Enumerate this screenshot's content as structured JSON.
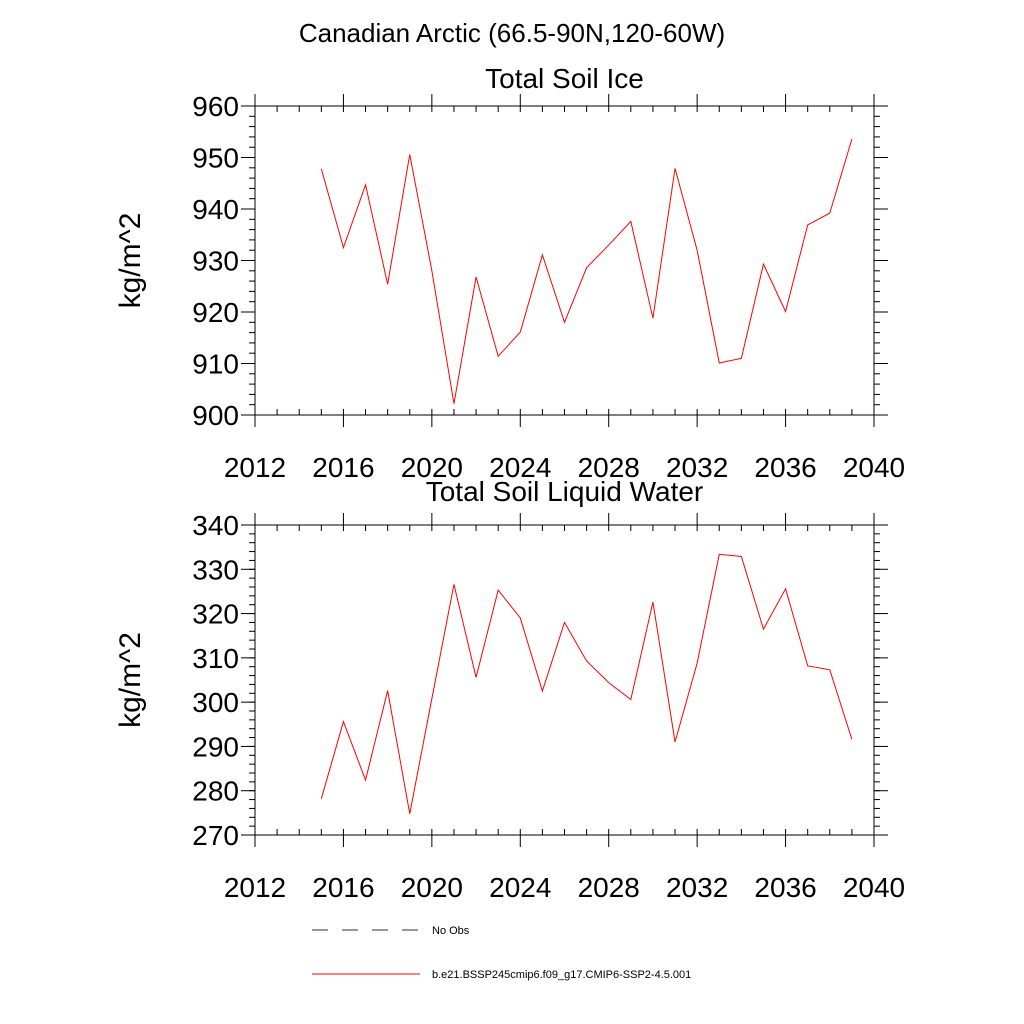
{
  "figure": {
    "title": "Canadian Arctic (66.5-90N,120-60W)"
  },
  "colors": {
    "series": "#ff0000",
    "obs": "#2b2b5a",
    "axis": "#000000"
  },
  "legend": {
    "placement": "bottom",
    "entries": [
      {
        "label": "No Obs",
        "style": "dashed",
        "color": "#2b2b5a"
      },
      {
        "label": "b.e21.BSSP245cmip6.f09_g17.CMIP6-SSP2-4.5.001",
        "style": "solid",
        "color": "#ff0000"
      }
    ]
  },
  "chart_data": [
    {
      "type": "line",
      "title": "Total Soil Ice",
      "ylabel": "kg/m^2",
      "xlim": [
        2012,
        2040
      ],
      "ylim": [
        900,
        960
      ],
      "xticks": [
        2012,
        2016,
        2020,
        2024,
        2028,
        2032,
        2036,
        2040
      ],
      "yticks": [
        900,
        910,
        920,
        930,
        940,
        950,
        960
      ],
      "grid": false,
      "x": [
        2015,
        2016,
        2017,
        2018,
        2019,
        2020,
        2021,
        2022,
        2023,
        2024,
        2025,
        2026,
        2027,
        2028,
        2029,
        2030,
        2031,
        2032,
        2033,
        2034,
        2035,
        2036,
        2037,
        2038,
        2039
      ],
      "series": [
        {
          "name": "b.e21.BSSP245cmip6.f09_g17.CMIP6-SSP2-4.5.001",
          "values": [
            947.8,
            932.5,
            944.7,
            925.4,
            950.6,
            928.0,
            902.2,
            926.8,
            911.4,
            916.1,
            931.1,
            918.0,
            928.6,
            933.0,
            937.6,
            918.8,
            947.9,
            932.0,
            910.1,
            911.0,
            929.3,
            920.1,
            936.9,
            939.2,
            953.6
          ]
        }
      ]
    },
    {
      "type": "line",
      "title": "Total Soil Liquid Water",
      "ylabel": "kg/m^2",
      "xlim": [
        2012,
        2040
      ],
      "ylim": [
        270,
        340
      ],
      "xticks": [
        2012,
        2016,
        2020,
        2024,
        2028,
        2032,
        2036,
        2040
      ],
      "yticks": [
        270,
        280,
        290,
        300,
        310,
        320,
        330,
        340
      ],
      "grid": false,
      "x": [
        2015,
        2016,
        2017,
        2018,
        2019,
        2020,
        2021,
        2022,
        2023,
        2024,
        2025,
        2026,
        2027,
        2028,
        2029,
        2030,
        2031,
        2032,
        2033,
        2034,
        2035,
        2036,
        2037,
        2038,
        2039
      ],
      "series": [
        {
          "name": "b.e21.BSSP245cmip6.f09_g17.CMIP6-SSP2-4.5.001",
          "values": [
            278.2,
            295.6,
            282.4,
            302.6,
            274.8,
            300.8,
            326.6,
            305.6,
            325.3,
            319.0,
            302.5,
            318.0,
            309.3,
            304.4,
            300.6,
            322.6,
            291.0,
            308.8,
            333.4,
            332.9,
            316.5,
            325.6,
            308.2,
            307.3,
            291.6
          ]
        }
      ]
    }
  ]
}
